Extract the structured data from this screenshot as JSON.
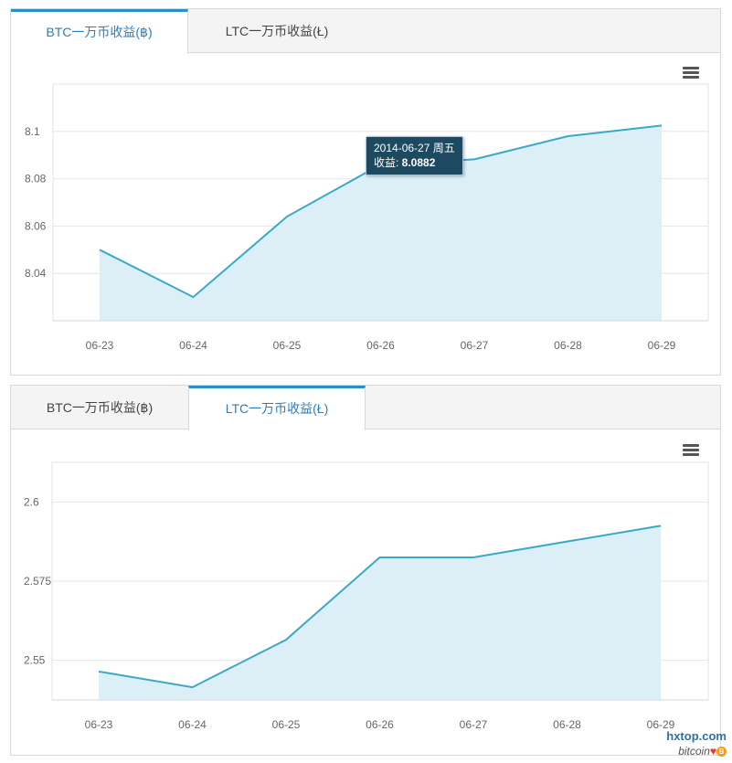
{
  "tabs": {
    "btc_label": "BTC一万币收益(฿)",
    "ltc_label": "LTC一万币收益(Ł)"
  },
  "menu_icon": "hamburger-menu-icon",
  "colors": {
    "line": "#3aa8c8",
    "area": "#dceff6",
    "active_tab": "#2a7ec2",
    "tooltip_bg": "#1d4a60"
  },
  "tooltip": {
    "date": "2014-06-27 周五",
    "label": "收益: ",
    "value": "8.0882"
  },
  "watermark": {
    "site": "hxtop.com",
    "sub": "bitcoin"
  },
  "chart_data": [
    {
      "type": "area",
      "active_tab": "BTC一万币收益(฿)",
      "categories": [
        "06-23",
        "06-24",
        "06-25",
        "06-26",
        "06-27",
        "06-28",
        "06-29"
      ],
      "values": [
        8.05,
        8.03,
        8.064,
        8.086,
        8.0882,
        8.098,
        8.1025
      ],
      "yticks": [
        "8.04",
        "8.06",
        "8.08",
        "8.1"
      ],
      "ytick_values": [
        8.04,
        8.06,
        8.08,
        8.1
      ],
      "ylim": [
        8.02,
        8.12
      ],
      "grid": true,
      "legend": "none"
    },
    {
      "type": "area",
      "active_tab": "LTC一万币收益(Ł)",
      "categories": [
        "06-23",
        "06-24",
        "06-25",
        "06-26",
        "06-27",
        "06-28",
        "06-29"
      ],
      "values": [
        2.5465,
        2.5415,
        2.5565,
        2.5825,
        2.5825,
        2.5875,
        2.5925
      ],
      "yticks": [
        "2.55",
        "2.575",
        "2.6"
      ],
      "ytick_values": [
        2.55,
        2.575,
        2.6
      ],
      "ylim": [
        2.5375,
        2.6125
      ],
      "grid": true,
      "legend": "none"
    }
  ]
}
